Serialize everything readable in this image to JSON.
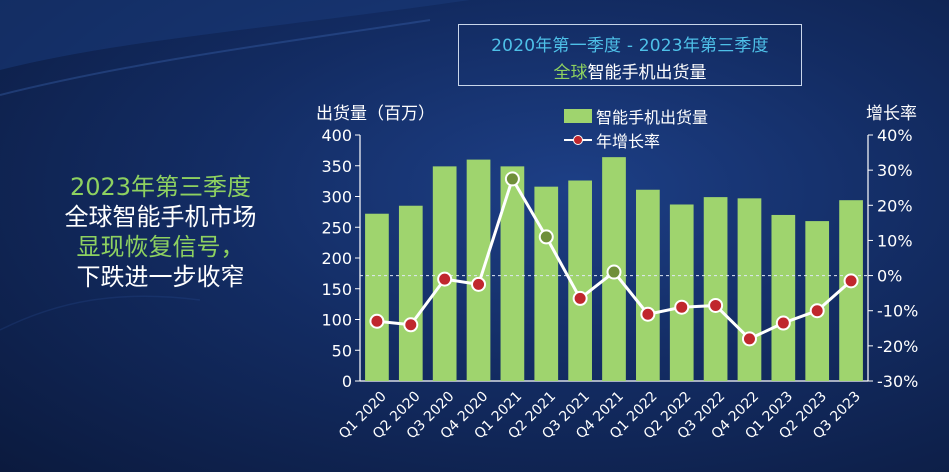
{
  "title": {
    "line1": "2020年第一季度 - 2023年第三季度",
    "line2_highlight": "全球",
    "line2_rest": "智能手机出货量"
  },
  "headline": {
    "line1": "2023年第三季度",
    "line2": "全球智能手机市场",
    "line3": "显现恢复信号，",
    "line4": "下跌进一步收窄"
  },
  "colors": {
    "bar": "#9fd46e",
    "line": "#ffffff",
    "marker": "#c0272d",
    "marker_alt": "#6f8f3a",
    "text": "#ffffff",
    "title_accent": "#4ec0e8",
    "green_accent": "#8ed160"
  },
  "chart_data": {
    "type": "bar",
    "title": "2020年第一季度 - 2023年第三季度 全球智能手机出货量",
    "ylabel": "出货量（百万）",
    "y2label": "增长率",
    "ylim": [
      0,
      400
    ],
    "y2lim": [
      -30,
      40
    ],
    "yticks": [
      "0",
      "50",
      "100",
      "150",
      "200",
      "250",
      "300",
      "350",
      "400"
    ],
    "y2ticks": [
      "-30%",
      "-20%",
      "-10%",
      "0%",
      "10%",
      "20%",
      "30%",
      "40%"
    ],
    "categories": [
      "Q1 2020",
      "Q2 2020",
      "Q3 2020",
      "Q4 2020",
      "Q1 2021",
      "Q2 2021",
      "Q3 2021",
      "Q4 2021",
      "Q1 2022",
      "Q2 2022",
      "Q3 2022",
      "Q4 2022",
      "Q1 2023",
      "Q2 2023",
      "Q3 2023"
    ],
    "legend": [
      "智能手机出货量",
      "年增长率"
    ],
    "series": [
      {
        "name": "智能手机出货量",
        "type": "bar",
        "axis": "left",
        "values": [
          272,
          285,
          349,
          360,
          349,
          316,
          326,
          364,
          311,
          287,
          299,
          297,
          270,
          260,
          294
        ]
      },
      {
        "name": "年增长率",
        "type": "line",
        "axis": "right",
        "values": [
          -13,
          -14,
          -1,
          -2.5,
          27.5,
          11,
          -6.5,
          1,
          -11,
          -9,
          -8.5,
          -18,
          -13.5,
          -10,
          -1.5
        ]
      }
    ],
    "grid": false,
    "reference_line": {
      "axis": "right",
      "value": 0,
      "style": "dashed"
    }
  }
}
